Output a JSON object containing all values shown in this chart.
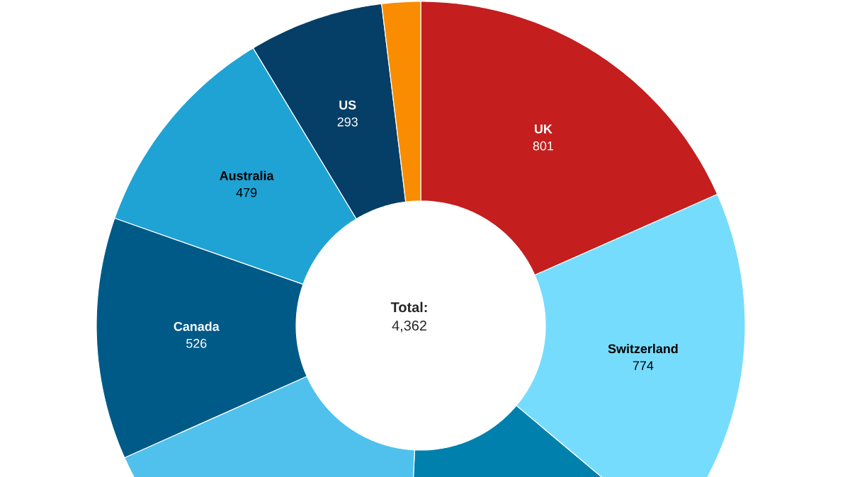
{
  "chart_data": {
    "type": "donut",
    "categories": [
      "UK",
      "Switzerland",
      null,
      null,
      "Canada",
      "Australia",
      "US",
      null
    ],
    "values": [
      801,
      774,
      640,
      765,
      526,
      479,
      293,
      84
    ],
    "value_labels": [
      "801",
      "774",
      null,
      null,
      "526",
      "479",
      "293",
      null
    ],
    "colors": [
      "#c41e1e",
      "#76dcfd",
      "#0080ad",
      "#4fc1ec",
      "#005a87",
      "#1fa3d4",
      "#053e66",
      "#f98c00"
    ],
    "annotations": [
      "Total:",
      "4,362"
    ]
  }
}
